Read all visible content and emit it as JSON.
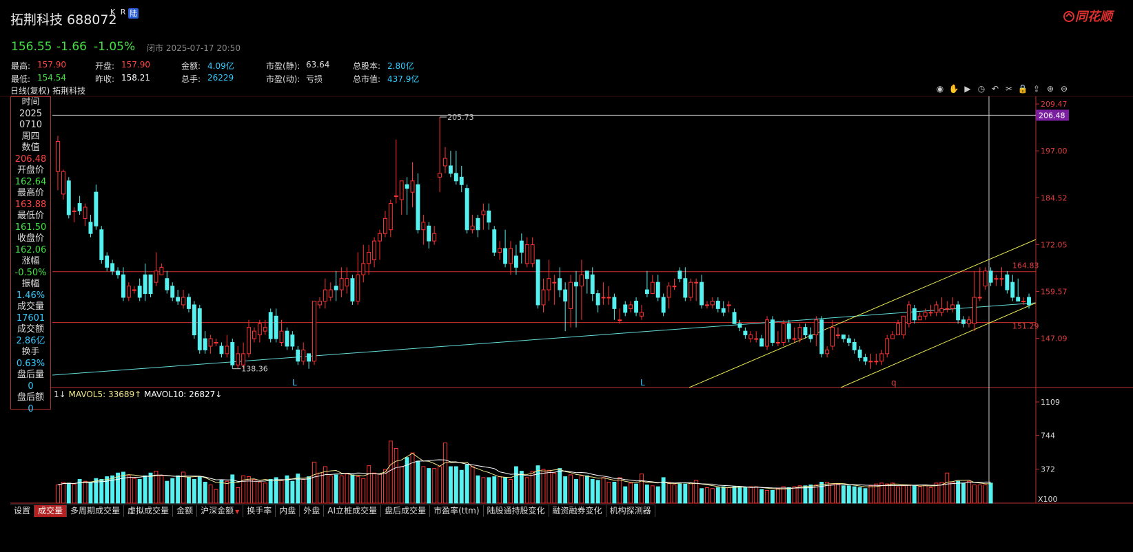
{
  "header": {
    "title": "拓荆科技 688072",
    "badge_kr": "K R",
    "badge_lu": "陆",
    "logo_text": "同花顺"
  },
  "quote": {
    "price": "156.55",
    "change": "-1.66",
    "change_pct": "-1.05%",
    "status": "闭市 2025-07-17 20:50"
  },
  "stats": [
    [
      {
        "label": "最高:",
        "value": "157.90",
        "color": "#ff4444"
      },
      {
        "label": "开盘:",
        "value": "157.90",
        "color": "#ff4444"
      },
      {
        "label": "金额:",
        "value": "4.09亿",
        "color": "#33ccff"
      },
      {
        "label": "市盈(静):",
        "value": "63.64",
        "color": "#dddddd"
      },
      {
        "label": "总股本:",
        "value": "2.80亿",
        "color": "#33ccff"
      }
    ],
    [
      {
        "label": "最低:",
        "value": "154.54",
        "color": "#44e044"
      },
      {
        "label": "昨收:",
        "value": "158.21",
        "color": "#ffffff"
      },
      {
        "label": "总手:",
        "value": "26229",
        "color": "#33ccff"
      },
      {
        "label": "市盈(动):",
        "value": "亏损",
        "color": "#dddddd"
      },
      {
        "label": "总市值:",
        "value": "437.9亿",
        "color": "#33ccff"
      }
    ]
  ],
  "chart_label": "日线(复权)  拓荆科技",
  "toolbar_icons": [
    "eye-icon",
    "hand-icon",
    "play-icon",
    "clock-icon",
    "undo-icon",
    "scissors-icon",
    "lock-icon",
    "upload-icon",
    "zoom-in-icon",
    "zoom-out-icon"
  ],
  "infobox": [
    {
      "label": "时间",
      "value": "2025",
      "color": "#dddddd"
    },
    {
      "label": "",
      "value": "0710",
      "color": "#dddddd"
    },
    {
      "label": "",
      "value": "周四",
      "color": "#dddddd"
    },
    {
      "label": "数值",
      "value": "206.48",
      "color": "#ff4444"
    },
    {
      "label": "开盘价",
      "value": "162.64",
      "color": "#44e044"
    },
    {
      "label": "最高价",
      "value": "163.88",
      "color": "#ff4444"
    },
    {
      "label": "最低价",
      "value": "161.50",
      "color": "#44e044"
    },
    {
      "label": "收盘价",
      "value": "162.06",
      "color": "#44e044"
    },
    {
      "label": "涨幅",
      "value": "-0.50%",
      "color": "#44e044"
    },
    {
      "label": "振幅",
      "value": "1.46%",
      "color": "#33ccff"
    },
    {
      "label": "成交量",
      "value": "17601",
      "color": "#33ccff"
    },
    {
      "label": "成交额",
      "value": "2.86亿",
      "color": "#33ccff"
    },
    {
      "label": "换手",
      "value": "0.63%",
      "color": "#33ccff"
    },
    {
      "label": "盘后量",
      "value": "0",
      "color": "#33ccff"
    },
    {
      "label": "盘后额",
      "value": "0",
      "color": "#33ccff"
    }
  ],
  "volume_legend": {
    "prefix": "1↓",
    "mavol5": "MAVOL5: 33689↑",
    "mavol10": "MAVOL10: 26827↓"
  },
  "tabs": [
    {
      "label": "设置",
      "active": false,
      "arrow": false
    },
    {
      "label": "成交量",
      "active": true,
      "arrow": false
    },
    {
      "label": "多周期成交量",
      "active": false,
      "arrow": false
    },
    {
      "label": "虚拟成交量",
      "active": false,
      "arrow": false
    },
    {
      "label": "金额",
      "active": false,
      "arrow": false
    },
    {
      "label": "沪深金额",
      "active": false,
      "arrow": true
    },
    {
      "label": "换手率",
      "active": false,
      "arrow": false
    },
    {
      "label": "内盘",
      "active": false,
      "arrow": false
    },
    {
      "label": "外盘",
      "active": false,
      "arrow": false
    },
    {
      "label": "AI立桩成交量",
      "active": false,
      "arrow": false
    },
    {
      "label": "盘后成交量",
      "active": false,
      "arrow": false
    },
    {
      "label": "市盈率(ttm)",
      "active": false,
      "arrow": false
    },
    {
      "label": "陆股通持股变化",
      "active": false,
      "arrow": false
    },
    {
      "label": "融资融券变化",
      "active": false,
      "arrow": false
    },
    {
      "label": "机构探测器",
      "active": false,
      "arrow": false
    }
  ],
  "chart_data": {
    "type": "candlestick",
    "price_axis": {
      "ticks": [
        "209.47",
        "197.00",
        "184.52",
        "172.05",
        "159.57",
        "147.09"
      ],
      "ylim": [
        134,
        211.5
      ]
    },
    "crosshair_value": "206.48",
    "hlines": [
      {
        "value": 164.83,
        "label": "164.83"
      },
      {
        "value": 151.29,
        "label": "151.29"
      }
    ],
    "high_label": "205.73",
    "low_label": "138.36",
    "markers": [
      "L",
      "L",
      "q"
    ],
    "colors": {
      "up": "#ff3333",
      "down": "#55f0f0",
      "axis": "#c03030",
      "mavol5": "#f0e68c",
      "mavol10": "#ffffff",
      "trend": "#66dddd",
      "channel": "#e8e850"
    },
    "candles": [
      [
        191.5,
        199.5,
        201,
        186.5
      ],
      [
        185.5,
        191.5,
        192,
        184
      ],
      [
        189,
        180,
        190,
        179
      ],
      [
        181,
        181,
        182,
        178
      ],
      [
        183,
        181,
        185,
        180
      ],
      [
        179,
        182,
        183,
        177
      ],
      [
        178,
        175,
        180,
        174
      ],
      [
        186,
        177,
        188,
        176
      ],
      [
        176,
        168,
        177,
        167
      ],
      [
        169,
        166,
        170,
        165
      ],
      [
        167,
        165,
        168,
        164
      ],
      [
        165,
        164,
        166,
        163
      ],
      [
        164,
        158,
        166,
        157
      ],
      [
        158,
        161,
        162,
        157
      ],
      [
        160,
        160,
        161,
        159
      ],
      [
        161,
        158,
        163,
        157
      ],
      [
        164,
        159,
        167,
        157
      ],
      [
        164,
        159,
        164,
        158
      ],
      [
        162,
        165,
        170,
        161
      ],
      [
        164,
        166,
        167,
        164
      ],
      [
        163,
        160,
        165,
        159
      ],
      [
        161,
        158,
        162,
        157
      ],
      [
        158,
        157,
        160,
        156
      ],
      [
        156,
        158,
        160,
        155
      ],
      [
        158,
        155,
        159,
        154
      ],
      [
        156,
        148,
        157,
        147
      ],
      [
        155,
        144,
        156,
        143
      ],
      [
        147,
        144,
        149,
        143
      ],
      [
        145,
        147,
        148,
        143
      ],
      [
        146,
        146,
        147,
        145
      ],
      [
        145,
        143,
        146,
        142
      ],
      [
        143,
        145,
        148,
        142
      ],
      [
        146,
        140,
        147,
        139
      ],
      [
        140,
        143,
        145,
        139
      ],
      [
        140,
        143,
        146,
        139
      ],
      [
        143,
        150,
        152,
        142
      ],
      [
        147,
        149,
        150,
        146
      ],
      [
        148,
        151,
        152,
        146
      ],
      [
        149,
        150,
        152,
        148
      ],
      [
        154,
        147,
        155,
        146
      ],
      [
        153,
        147,
        155,
        146
      ],
      [
        146,
        149,
        152,
        145
      ],
      [
        149,
        145,
        150,
        144
      ],
      [
        148,
        145,
        149,
        144
      ],
      [
        144,
        141,
        145,
        140
      ],
      [
        141,
        144,
        146,
        140
      ],
      [
        143,
        141,
        143,
        139
      ],
      [
        141,
        157,
        157,
        140
      ],
      [
        156,
        157,
        158,
        155
      ],
      [
        157,
        160,
        163,
        155
      ],
      [
        158,
        160,
        162,
        157
      ],
      [
        161,
        160,
        165,
        157
      ],
      [
        160,
        163,
        166,
        158
      ],
      [
        161,
        163,
        166,
        159
      ],
      [
        163,
        157,
        164,
        156
      ],
      [
        157,
        164,
        170,
        156
      ],
      [
        164,
        167,
        172,
        162
      ],
      [
        167,
        170,
        172,
        164
      ],
      [
        168,
        173,
        174,
        166
      ],
      [
        173,
        175,
        176,
        168
      ],
      [
        175,
        179,
        181,
        174
      ],
      [
        176,
        183,
        184,
        174
      ],
      [
        185,
        185,
        200,
        183
      ],
      [
        184,
        189,
        189,
        180
      ],
      [
        188,
        187,
        190,
        180
      ],
      [
        186,
        189,
        194,
        182
      ],
      [
        188,
        176,
        191,
        175
      ],
      [
        176,
        178,
        180,
        172
      ],
      [
        177,
        173,
        178,
        171
      ],
      [
        173,
        175,
        177,
        172
      ],
      [
        190,
        191,
        206,
        186
      ],
      [
        193,
        195,
        198,
        191
      ],
      [
        193,
        191,
        197,
        190
      ],
      [
        191,
        189,
        197,
        188
      ],
      [
        190,
        188,
        193,
        186
      ],
      [
        187,
        176,
        188,
        175
      ],
      [
        176,
        177,
        180,
        175
      ],
      [
        179,
        176,
        180,
        174
      ],
      [
        180,
        181,
        183,
        176
      ],
      [
        181,
        178,
        183,
        176
      ],
      [
        176,
        170,
        177,
        169
      ],
      [
        170,
        171,
        173,
        168
      ],
      [
        171,
        167,
        176,
        166
      ],
      [
        167,
        171,
        173,
        164
      ],
      [
        169,
        166,
        172,
        164
      ],
      [
        173,
        170,
        175,
        167
      ],
      [
        167,
        172,
        174,
        166
      ],
      [
        167,
        172,
        174,
        166
      ],
      [
        168,
        156,
        168,
        155
      ],
      [
        156,
        160,
        163,
        154
      ],
      [
        160,
        163,
        168,
        157
      ],
      [
        162,
        162,
        164,
        156
      ],
      [
        163,
        160,
        166,
        158
      ],
      [
        160,
        157,
        162,
        149
      ],
      [
        155,
        162,
        164,
        150
      ],
      [
        162,
        161,
        165,
        150
      ],
      [
        161,
        164,
        168,
        152
      ],
      [
        165,
        163,
        165,
        159
      ],
      [
        164,
        159,
        166,
        157
      ],
      [
        159,
        156,
        160,
        154
      ],
      [
        158,
        158,
        162,
        156
      ],
      [
        158,
        158,
        161,
        156
      ],
      [
        158,
        155,
        159,
        152
      ],
      [
        152,
        152,
        155,
        151
      ],
      [
        156,
        154,
        157,
        153
      ],
      [
        155,
        156,
        157,
        154
      ],
      [
        157,
        154,
        158,
        153
      ],
      [
        153,
        154,
        156,
        152
      ],
      [
        160,
        159,
        165,
        158
      ],
      [
        159,
        162,
        164,
        159
      ],
      [
        162,
        158,
        164,
        157
      ],
      [
        158,
        154,
        159,
        153
      ],
      [
        158,
        161,
        162,
        155
      ],
      [
        161,
        161,
        163,
        160
      ],
      [
        165,
        163,
        166,
        162
      ],
      [
        163,
        158,
        166,
        157
      ],
      [
        158,
        162,
        163,
        157
      ],
      [
        162,
        162,
        163,
        157
      ],
      [
        162,
        156,
        164,
        155
      ],
      [
        156,
        156,
        157,
        155
      ],
      [
        156,
        157,
        158,
        155
      ],
      [
        157,
        155,
        158,
        154
      ],
      [
        155,
        154,
        157,
        153
      ],
      [
        156,
        156,
        157,
        154
      ],
      [
        154,
        151,
        155,
        152
      ],
      [
        151,
        150,
        152,
        149
      ],
      [
        149,
        148,
        150,
        147
      ],
      [
        147,
        148,
        149,
        146
      ],
      [
        147,
        147,
        149,
        146
      ],
      [
        147,
        145,
        148,
        145
      ],
      [
        145,
        152,
        153,
        144
      ],
      [
        152,
        146,
        153,
        145
      ],
      [
        146,
        146,
        149,
        145
      ],
      [
        146,
        151,
        152,
        145
      ],
      [
        151,
        147,
        152,
        146
      ],
      [
        147,
        147,
        150,
        146
      ],
      [
        147,
        150,
        151,
        146
      ],
      [
        150,
        148,
        151,
        147
      ],
      [
        148,
        147,
        150,
        146
      ],
      [
        148,
        152,
        153,
        145
      ],
      [
        152,
        143,
        153,
        142
      ],
      [
        143,
        144,
        145,
        142
      ],
      [
        145,
        150,
        152,
        144
      ],
      [
        148,
        148,
        150,
        147
      ],
      [
        148,
        147,
        148,
        146
      ],
      [
        147,
        146,
        148,
        145
      ],
      [
        146,
        144,
        147,
        143
      ],
      [
        144,
        142,
        145,
        141
      ],
      [
        142,
        141,
        143,
        140
      ],
      [
        141,
        141,
        143,
        139
      ],
      [
        141,
        141,
        143,
        140
      ],
      [
        141,
        143,
        144,
        140
      ],
      [
        143,
        147,
        148,
        142
      ],
      [
        147,
        148,
        149,
        147
      ],
      [
        148,
        151,
        152,
        148
      ],
      [
        148,
        153,
        153,
        147
      ],
      [
        151,
        156,
        157,
        150
      ],
      [
        155,
        152,
        156,
        151
      ],
      [
        152,
        153,
        154,
        152
      ],
      [
        153,
        154,
        155,
        152
      ],
      [
        154,
        154,
        156,
        153
      ],
      [
        154,
        156,
        157,
        153
      ],
      [
        154,
        155,
        158,
        153
      ],
      [
        155,
        155,
        157,
        154
      ],
      [
        155,
        156,
        158,
        154
      ],
      [
        156,
        152,
        157,
        151
      ],
      [
        152,
        151,
        153,
        150
      ],
      [
        151,
        152,
        153,
        150
      ],
      [
        151,
        158,
        165,
        149
      ],
      [
        158,
        158,
        166,
        157
      ],
      [
        161,
        165,
        166,
        160
      ],
      [
        165,
        162,
        166,
        161
      ],
      [
        163,
        163,
        164,
        161
      ],
      [
        163,
        163,
        166,
        161
      ],
      [
        164,
        160,
        165,
        159
      ],
      [
        162,
        158,
        164,
        157
      ],
      [
        158,
        157,
        163,
        157
      ],
      [
        157,
        157,
        158,
        156
      ],
      [
        158,
        156,
        159,
        155
      ]
    ],
    "volumes": [
      200,
      230,
      220,
      210,
      260,
      240,
      230,
      270,
      260,
      290,
      300,
      330,
      340,
      300,
      270,
      260,
      300,
      330,
      350,
      300,
      240,
      270,
      300,
      340,
      280,
      260,
      290,
      230,
      200,
      150,
      250,
      240,
      310,
      170,
      300,
      290,
      260,
      230,
      220,
      260,
      280,
      250,
      300,
      240,
      320,
      260,
      290,
      450,
      330,
      400,
      300,
      310,
      300,
      320,
      310,
      290,
      270,
      410,
      330,
      320,
      370,
      680,
      600,
      400,
      500,
      550,
      460,
      400,
      380,
      380,
      400,
      660,
      400,
      400,
      360,
      420,
      400,
      300,
      280,
      280,
      290,
      290,
      280,
      260,
      400,
      350,
      280,
      350,
      410,
      370,
      360,
      330,
      380,
      290,
      310,
      260,
      300,
      300,
      260,
      250,
      280,
      230,
      230,
      280,
      180,
      220,
      210,
      320,
      200,
      190,
      180,
      280,
      220,
      200,
      210,
      210,
      220,
      250,
      160,
      170,
      160,
      170,
      180,
      170,
      180,
      180,
      170,
      180,
      180,
      150,
      140,
      140,
      160,
      180,
      170,
      180,
      190,
      190,
      200,
      200,
      230,
      230,
      210,
      210,
      190,
      190,
      180,
      170,
      160,
      190,
      210,
      220,
      210,
      220,
      180,
      190,
      200,
      190,
      180,
      200,
      170,
      220,
      230,
      330,
      230,
      240,
      220,
      240,
      200,
      200,
      200,
      220
    ]
  }
}
